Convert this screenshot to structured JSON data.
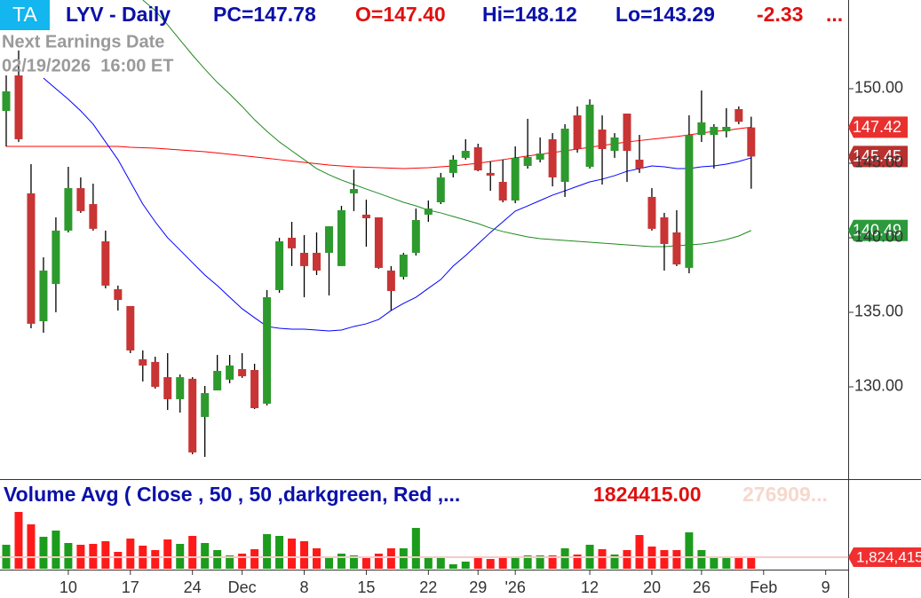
{
  "chart_data": {
    "type": "candlestick",
    "header": {
      "badge": "TA",
      "title": "LYV - Daily",
      "fields": [
        {
          "text": "PC=147.78",
          "color": "#0a10a8"
        },
        {
          "text": "O=147.40",
          "color": "#e01010"
        },
        {
          "text": "Hi=148.12",
          "color": "#0a10a8"
        },
        {
          "text": "Lo=143.29",
          "color": "#0a10a8"
        },
        {
          "text": "-2.33",
          "color": "#e01010"
        },
        {
          "text": "...",
          "color": "#e01010"
        }
      ]
    },
    "earnings": [
      "Next Earnings Date",
      "02/19/2026  16:00 ET"
    ],
    "categories": [
      null,
      null,
      null,
      null,
      null,
      "10",
      null,
      null,
      null,
      null,
      "17",
      null,
      null,
      null,
      null,
      "24",
      null,
      null,
      null,
      "Dec",
      null,
      null,
      null,
      null,
      "8",
      null,
      null,
      null,
      null,
      "15",
      null,
      null,
      null,
      null,
      "22",
      null,
      null,
      null,
      "29",
      null,
      null,
      "'26",
      null,
      null,
      null,
      null,
      null,
      "12",
      null,
      null,
      null,
      null,
      "20",
      null,
      null,
      null,
      "26",
      null,
      null,
      null,
      null,
      "Feb",
      null,
      null,
      null,
      null,
      "9"
    ],
    "open": [
      148.51,
      150.89,
      142.98,
      134.4,
      136.9,
      140.48,
      143.33,
      142.26,
      139.76,
      136.55,
      135.42,
      131.85,
      131.67,
      130.65,
      129.17,
      130.54,
      127.98,
      129.76,
      130.48,
      131.19,
      131.13,
      128.87,
      136.49,
      140.0,
      138.99,
      138.99,
      138.99,
      138.1,
      142.98,
      141.55,
      141.37,
      137.8,
      137.38,
      138.99,
      141.55,
      142.38,
      144.35,
      145.36,
      146.07,
      144.35,
      143.75,
      142.5,
      144.82,
      145.24,
      146.61,
      143.75,
      148.21,
      144.76,
      147.26,
      145.83,
      148.33,
      145.24,
      142.74,
      141.37,
      140.36,
      137.98,
      146.9,
      146.9,
      147.14,
      148.63,
      147.4,
      null,
      null,
      null,
      null,
      null,
      null
    ],
    "high": [
      150.89,
      152.56,
      144.94,
      138.69,
      141.37,
      144.76,
      144.05,
      143.63,
      140.48,
      136.79,
      135.42,
      132.44,
      132.02,
      132.26,
      130.83,
      130.65,
      130.06,
      132.14,
      132.14,
      132.26,
      131.55,
      136.49,
      140.0,
      141.07,
      140.18,
      140.36,
      140.77,
      142.14,
      144.58,
      142.56,
      141.37,
      138.1,
      138.99,
      141.96,
      142.5,
      144.35,
      145.54,
      146.61,
      146.31,
      145.12,
      145.24,
      146.13,
      147.98,
      146.73,
      147.02,
      147.62,
      148.81,
      149.29,
      148.21,
      147.02,
      148.33,
      146.9,
      143.33,
      141.67,
      141.85,
      148.21,
      149.88,
      147.62,
      148.69,
      148.81,
      148.12,
      null,
      null,
      null,
      null,
      null,
      null
    ],
    "low": [
      146.13,
      146.43,
      133.93,
      133.63,
      135.0,
      140.36,
      141.67,
      140.48,
      136.61,
      135.12,
      132.26,
      130.36,
      129.88,
      128.45,
      128.27,
      125.48,
      125.3,
      129.76,
      130.24,
      130.6,
      128.51,
      128.75,
      136.31,
      138.1,
      136.01,
      137.5,
      136.13,
      138.1,
      141.79,
      139.4,
      137.92,
      135.12,
      137.2,
      138.81,
      141.07,
      142.26,
      144.05,
      145.24,
      144.46,
      143.15,
      142.38,
      142.32,
      144.64,
      145.06,
      143.45,
      142.74,
      145.71,
      144.64,
      143.57,
      145.36,
      143.75,
      144.35,
      140.48,
      137.8,
      138.1,
      137.62,
      146.43,
      144.64,
      146.73,
      147.62,
      143.29,
      null,
      null,
      null,
      null,
      null,
      null
    ],
    "close": [
      149.82,
      146.61,
      134.23,
      137.8,
      140.48,
      143.33,
      141.79,
      140.6,
      136.79,
      135.83,
      132.44,
      131.43,
      130.0,
      129.17,
      130.65,
      125.6,
      129.58,
      131.07,
      131.43,
      130.71,
      128.57,
      136.01,
      139.76,
      139.29,
      138.1,
      137.8,
      140.77,
      141.85,
      143.27,
      141.31,
      137.98,
      136.43,
      138.87,
      141.19,
      141.96,
      144.05,
      145.24,
      145.83,
      144.52,
      144.17,
      142.5,
      145.36,
      145.42,
      145.65,
      144.05,
      147.32,
      145.95,
      148.93,
      145.95,
      146.73,
      145.83,
      144.64,
      140.6,
      139.58,
      138.21,
      146.9,
      147.74,
      147.44,
      147.44,
      147.78,
      145.45,
      null,
      null,
      null,
      null,
      null,
      null
    ],
    "up_color": "#2d9a2d",
    "down_color": "#c93434",
    "series": [
      {
        "color": "#ff0000",
        "values": [
          146.13,
          146.13,
          146.13,
          146.13,
          146.13,
          146.13,
          146.13,
          146.13,
          146.13,
          146.13,
          146.07,
          146.04,
          146.01,
          145.95,
          145.89,
          145.83,
          145.77,
          145.69,
          145.6,
          145.51,
          145.42,
          145.33,
          145.24,
          145.15,
          145.06,
          144.97,
          144.88,
          144.82,
          144.76,
          144.73,
          144.7,
          144.67,
          144.64,
          144.67,
          144.7,
          144.76,
          144.82,
          144.91,
          145.0,
          145.12,
          145.24,
          145.36,
          145.48,
          145.6,
          145.71,
          145.83,
          145.95,
          146.07,
          146.19,
          146.31,
          146.43,
          146.52,
          146.61,
          146.7,
          146.79,
          146.9,
          147.02,
          147.14,
          147.2,
          147.32,
          147.42,
          null,
          null,
          null,
          null,
          null,
          null
        ]
      },
      {
        "color": "#0000ff",
        "values": [
          null,
          null,
          null,
          150.71,
          150.0,
          149.29,
          148.51,
          147.62,
          146.43,
          145.24,
          143.75,
          142.26,
          141.07,
          140.0,
          139.17,
          138.33,
          137.5,
          136.79,
          136.01,
          135.24,
          134.64,
          134.05,
          133.93,
          133.87,
          133.87,
          133.81,
          133.75,
          133.81,
          134.05,
          134.23,
          134.52,
          135.12,
          135.6,
          136.01,
          136.61,
          137.2,
          138.1,
          138.81,
          139.58,
          140.36,
          141.07,
          141.79,
          142.14,
          142.5,
          142.86,
          143.15,
          143.45,
          143.75,
          143.93,
          144.17,
          144.46,
          144.64,
          144.82,
          144.76,
          144.64,
          144.64,
          144.76,
          144.82,
          144.94,
          145.12,
          145.36,
          null,
          null,
          null,
          null,
          null,
          null
        ]
      },
      {
        "color": "#1e8a1e",
        "values": [
          null,
          null,
          null,
          null,
          null,
          null,
          null,
          null,
          null,
          null,
          null,
          155.95,
          155.24,
          154.29,
          153.27,
          152.26,
          151.31,
          150.42,
          149.64,
          148.81,
          147.92,
          147.14,
          146.43,
          145.83,
          145.24,
          144.64,
          144.23,
          143.87,
          143.57,
          143.27,
          142.98,
          142.68,
          142.38,
          142.14,
          141.85,
          141.67,
          141.43,
          141.19,
          140.95,
          140.65,
          140.42,
          140.24,
          140.06,
          139.94,
          139.88,
          139.82,
          139.76,
          139.7,
          139.64,
          139.58,
          139.52,
          139.46,
          139.4,
          139.4,
          139.46,
          139.52,
          139.58,
          139.7,
          139.88,
          140.12,
          140.49,
          null,
          null,
          null,
          null,
          null,
          null
        ]
      }
    ],
    "ylim": [
      123.81,
      155.95
    ],
    "yticks": [
      {
        "value": 130,
        "label": "130.00"
      },
      {
        "value": 135,
        "label": "135.00"
      },
      {
        "value": 140,
        "label": "140.00"
      },
      {
        "value": 145,
        "label": "145.00"
      },
      {
        "value": 150,
        "label": "150.00"
      }
    ],
    "price_tags": [
      {
        "value": 147.42,
        "color": "#e8312f"
      },
      {
        "value": 145.45,
        "color": "#b8312f"
      },
      {
        "value": 140.49,
        "color": "#2c9a3c"
      }
    ],
    "volume": {
      "type": "bar",
      "title": "Volume Avg ( Close , 50 , 50 ,darkgreen, Red ,...",
      "readouts": [
        {
          "text": "1824415.00",
          "color": "#e01010"
        },
        {
          "text": "276909...",
          "color": "#f6d8cc"
        }
      ],
      "values": [
        3780000,
        8960000,
        7000000,
        5040000,
        6020000,
        4060000,
        3780000,
        3920000,
        4340000,
        2660000,
        4760000,
        3640000,
        2940000,
        4620000,
        3920000,
        5180000,
        4060000,
        2940000,
        2100000,
        2380000,
        3080000,
        5460000,
        5180000,
        4760000,
        4340000,
        3220000,
        1960000,
        2380000,
        2100000,
        1960000,
        2380000,
        3220000,
        3220000,
        6440000,
        1820000,
        1820000,
        700000,
        1120000,
        1820000,
        1540000,
        1820000,
        1960000,
        2100000,
        2100000,
        2100000,
        3220000,
        2240000,
        3780000,
        3080000,
        2240000,
        2940000,
        5320000,
        3500000,
        2940000,
        2940000,
        5740000,
        2940000,
        1960000,
        1680000,
        1820000,
        1820000,
        null,
        null,
        null,
        null,
        null,
        null
      ],
      "up_color": "#1c9c1c",
      "down_color": "#ff1a1a",
      "ylim": [
        0,
        14140000
      ],
      "average": {
        "value": 1824415,
        "label": "1,824,415",
        "color": "#f03030"
      }
    }
  }
}
